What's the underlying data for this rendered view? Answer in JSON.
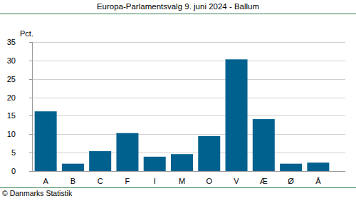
{
  "chart_data": {
    "type": "bar",
    "title": "Europa-Parlamentsvalg 9. juni 2024 - Ballum",
    "y_label": "Pct.",
    "source": "© Danmarks Statistik",
    "categories": [
      "A",
      "B",
      "C",
      "F",
      "I",
      "M",
      "O",
      "V",
      "Æ",
      "Ø",
      "Å"
    ],
    "values": [
      16.2,
      2.0,
      5.4,
      10.3,
      3.9,
      4.6,
      9.5,
      30.3,
      14.1,
      2.0,
      2.3
    ],
    "color": "#00618f",
    "ylim": [
      0,
      35
    ],
    "yticks": [
      0,
      5,
      10,
      15,
      20,
      25,
      30,
      35
    ],
    "grid": true
  }
}
